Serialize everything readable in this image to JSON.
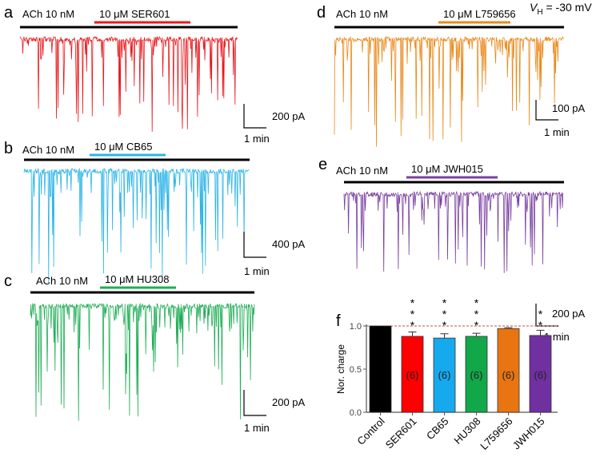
{
  "traces": [
    {
      "id": "a",
      "label": "a",
      "control": "ACh 10 nM",
      "drug": "10 μM SER601",
      "color": "#e8181c",
      "scale_y": "200 pA",
      "scale_x": "1 min"
    },
    {
      "id": "b",
      "label": "b",
      "control": "ACh 10 nM",
      "drug": "10 μM CB65",
      "color": "#2bb4e8",
      "scale_y": "400 pA",
      "scale_x": "1 min"
    },
    {
      "id": "c",
      "label": "c",
      "control": "ACh 10 nM",
      "drug": "10 μM HU308",
      "color": "#1fae55",
      "scale_y": "200 pA",
      "scale_x": "1 min"
    },
    {
      "id": "d",
      "label": "d",
      "control": "ACh 10 nM",
      "drug": "10 μM L759656",
      "color": "#e88a1c",
      "scale_y": "100 pA",
      "scale_x": "1 min"
    },
    {
      "id": "e",
      "label": "e",
      "control": "ACh 10 nM",
      "drug": "10 μM JWH015",
      "color": "#7a3fa0",
      "scale_y": "200 pA",
      "scale_x": "1 min"
    }
  ],
  "holding": {
    "v": "V",
    "sub": "H",
    "value": " = -30 mV"
  },
  "chart_data": {
    "type": "bar",
    "panel_label": "f",
    "ylabel": "Nor. charge",
    "ylim": [
      0,
      1.0
    ],
    "yticks": [
      "0.0",
      "0.5",
      "1.0"
    ],
    "reference_line": 1.0,
    "categories": [
      "Control",
      "SER601",
      "CB65",
      "HU308",
      "L759656",
      "JWH015"
    ],
    "values": [
      1.0,
      0.88,
      0.86,
      0.88,
      0.97,
      0.89
    ],
    "errors": [
      0,
      0.05,
      0.05,
      0.035,
      0.01,
      0.06
    ],
    "colors": [
      "#000000",
      "#ff0000",
      "#16a9ee",
      "#12a84a",
      "#e87412",
      "#7030a0"
    ],
    "n_labels": [
      "",
      "(6)",
      "(6)",
      "(6)",
      "(6)",
      "(6)"
    ],
    "significance": [
      "",
      "***",
      "***",
      "***",
      "",
      "**"
    ]
  }
}
